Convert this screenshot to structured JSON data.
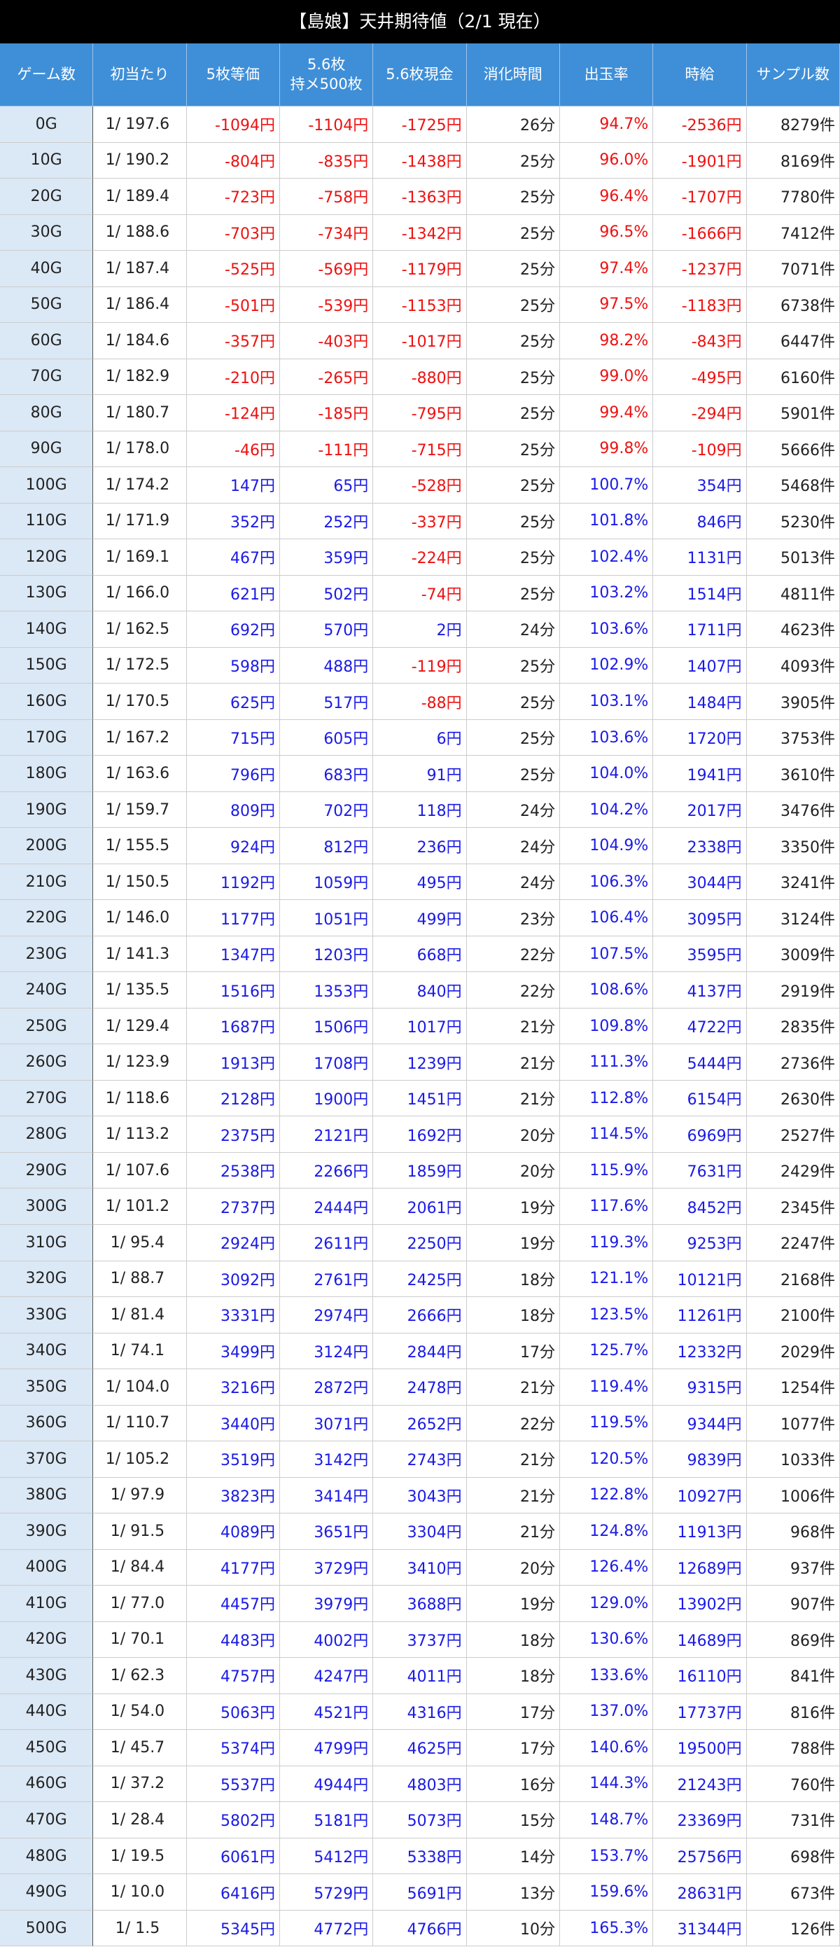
{
  "header": {
    "title": "【島娘】天井期待値（2/1 現在）"
  },
  "table": {
    "columns": [
      "ゲーム数",
      "初当たり",
      "5枚等価",
      "5.6枚\n持メ500枚",
      "5.6枚現金",
      "消化時間",
      "出玉率",
      "時給",
      "サンプル数"
    ],
    "rows": [
      [
        "0G",
        "1/ 197.6",
        "-1094円",
        "-1104円",
        "-1725円",
        "26分",
        "94.7%",
        "-2536円",
        "8279件"
      ],
      [
        "10G",
        "1/ 190.2",
        "-804円",
        "-835円",
        "-1438円",
        "25分",
        "96.0%",
        "-1901円",
        "8169件"
      ],
      [
        "20G",
        "1/ 189.4",
        "-723円",
        "-758円",
        "-1363円",
        "25分",
        "96.4%",
        "-1707円",
        "7780件"
      ],
      [
        "30G",
        "1/ 188.6",
        "-703円",
        "-734円",
        "-1342円",
        "25分",
        "96.5%",
        "-1666円",
        "7412件"
      ],
      [
        "40G",
        "1/ 187.4",
        "-525円",
        "-569円",
        "-1179円",
        "25分",
        "97.4%",
        "-1237円",
        "7071件"
      ],
      [
        "50G",
        "1/ 186.4",
        "-501円",
        "-539円",
        "-1153円",
        "25分",
        "97.5%",
        "-1183円",
        "6738件"
      ],
      [
        "60G",
        "1/ 184.6",
        "-357円",
        "-403円",
        "-1017円",
        "25分",
        "98.2%",
        "-843円",
        "6447件"
      ],
      [
        "70G",
        "1/ 182.9",
        "-210円",
        "-265円",
        "-880円",
        "25分",
        "99.0%",
        "-495円",
        "6160件"
      ],
      [
        "80G",
        "1/ 180.7",
        "-124円",
        "-185円",
        "-795円",
        "25分",
        "99.4%",
        "-294円",
        "5901件"
      ],
      [
        "90G",
        "1/ 178.0",
        "-46円",
        "-111円",
        "-715円",
        "25分",
        "99.8%",
        "-109円",
        "5666件"
      ],
      [
        "100G",
        "1/ 174.2",
        "147円",
        "65円",
        "-528円",
        "25分",
        "100.7%",
        "354円",
        "5468件"
      ],
      [
        "110G",
        "1/ 171.9",
        "352円",
        "252円",
        "-337円",
        "25分",
        "101.8%",
        "846円",
        "5230件"
      ],
      [
        "120G",
        "1/ 169.1",
        "467円",
        "359円",
        "-224円",
        "25分",
        "102.4%",
        "1131円",
        "5013件"
      ],
      [
        "130G",
        "1/ 166.0",
        "621円",
        "502円",
        "-74円",
        "25分",
        "103.2%",
        "1514円",
        "4811件"
      ],
      [
        "140G",
        "1/ 162.5",
        "692円",
        "570円",
        "2円",
        "24分",
        "103.6%",
        "1711円",
        "4623件"
      ],
      [
        "150G",
        "1/ 172.5",
        "598円",
        "488円",
        "-119円",
        "25分",
        "102.9%",
        "1407円",
        "4093件"
      ],
      [
        "160G",
        "1/ 170.5",
        "625円",
        "517円",
        "-88円",
        "25分",
        "103.1%",
        "1484円",
        "3905件"
      ],
      [
        "170G",
        "1/ 167.2",
        "715円",
        "605円",
        "6円",
        "25分",
        "103.6%",
        "1720円",
        "3753件"
      ],
      [
        "180G",
        "1/ 163.6",
        "796円",
        "683円",
        "91円",
        "25分",
        "104.0%",
        "1941円",
        "3610件"
      ],
      [
        "190G",
        "1/ 159.7",
        "809円",
        "702円",
        "118円",
        "24分",
        "104.2%",
        "2017円",
        "3476件"
      ],
      [
        "200G",
        "1/ 155.5",
        "924円",
        "812円",
        "236円",
        "24分",
        "104.9%",
        "2338円",
        "3350件"
      ],
      [
        "210G",
        "1/ 150.5",
        "1192円",
        "1059円",
        "495円",
        "24分",
        "106.3%",
        "3044円",
        "3241件"
      ],
      [
        "220G",
        "1/ 146.0",
        "1177円",
        "1051円",
        "499円",
        "23分",
        "106.4%",
        "3095円",
        "3124件"
      ],
      [
        "230G",
        "1/ 141.3",
        "1347円",
        "1203円",
        "668円",
        "22分",
        "107.5%",
        "3595円",
        "3009件"
      ],
      [
        "240G",
        "1/ 135.5",
        "1516円",
        "1353円",
        "840円",
        "22分",
        "108.6%",
        "4137円",
        "2919件"
      ],
      [
        "250G",
        "1/ 129.4",
        "1687円",
        "1506円",
        "1017円",
        "21分",
        "109.8%",
        "4722円",
        "2835件"
      ],
      [
        "260G",
        "1/ 123.9",
        "1913円",
        "1708円",
        "1239円",
        "21分",
        "111.3%",
        "5444円",
        "2736件"
      ],
      [
        "270G",
        "1/ 118.6",
        "2128円",
        "1900円",
        "1451円",
        "21分",
        "112.8%",
        "6154円",
        "2630件"
      ],
      [
        "280G",
        "1/ 113.2",
        "2375円",
        "2121円",
        "1692円",
        "20分",
        "114.5%",
        "6969円",
        "2527件"
      ],
      [
        "290G",
        "1/ 107.6",
        "2538円",
        "2266円",
        "1859円",
        "20分",
        "115.9%",
        "7631円",
        "2429件"
      ],
      [
        "300G",
        "1/ 101.2",
        "2737円",
        "2444円",
        "2061円",
        "19分",
        "117.6%",
        "8452円",
        "2345件"
      ],
      [
        "310G",
        "1/ 95.4",
        "2924円",
        "2611円",
        "2250円",
        "19分",
        "119.3%",
        "9253円",
        "2247件"
      ],
      [
        "320G",
        "1/ 88.7",
        "3092円",
        "2761円",
        "2425円",
        "18分",
        "121.1%",
        "10121円",
        "2168件"
      ],
      [
        "330G",
        "1/ 81.4",
        "3331円",
        "2974円",
        "2666円",
        "18分",
        "123.5%",
        "11261円",
        "2100件"
      ],
      [
        "340G",
        "1/ 74.1",
        "3499円",
        "3124円",
        "2844円",
        "17分",
        "125.7%",
        "12332円",
        "2029件"
      ],
      [
        "350G",
        "1/ 104.0",
        "3216円",
        "2872円",
        "2478円",
        "21分",
        "119.4%",
        "9315円",
        "1254件"
      ],
      [
        "360G",
        "1/ 110.7",
        "3440円",
        "3071円",
        "2652円",
        "22分",
        "119.5%",
        "9344円",
        "1077件"
      ],
      [
        "370G",
        "1/ 105.2",
        "3519円",
        "3142円",
        "2743円",
        "21分",
        "120.5%",
        "9839円",
        "1033件"
      ],
      [
        "380G",
        "1/ 97.9",
        "3823円",
        "3414円",
        "3043円",
        "21分",
        "122.8%",
        "10927円",
        "1006件"
      ],
      [
        "390G",
        "1/ 91.5",
        "4089円",
        "3651円",
        "3304円",
        "21分",
        "124.8%",
        "11913円",
        "968件"
      ],
      [
        "400G",
        "1/ 84.4",
        "4177円",
        "3729円",
        "3410円",
        "20分",
        "126.4%",
        "12689円",
        "937件"
      ],
      [
        "410G",
        "1/ 77.0",
        "4457円",
        "3979円",
        "3688円",
        "19分",
        "129.0%",
        "13902円",
        "907件"
      ],
      [
        "420G",
        "1/ 70.1",
        "4483円",
        "4002円",
        "3737円",
        "18分",
        "130.6%",
        "14689円",
        "869件"
      ],
      [
        "430G",
        "1/ 62.3",
        "4757円",
        "4247円",
        "4011円",
        "18分",
        "133.6%",
        "16110円",
        "841件"
      ],
      [
        "440G",
        "1/ 54.0",
        "5063円",
        "4521円",
        "4316円",
        "17分",
        "137.0%",
        "17737円",
        "816件"
      ],
      [
        "450G",
        "1/ 45.7",
        "5374円",
        "4799円",
        "4625円",
        "17分",
        "140.6%",
        "19500円",
        "788件"
      ],
      [
        "460G",
        "1/ 37.2",
        "5537円",
        "4944円",
        "4803円",
        "16分",
        "144.3%",
        "21243円",
        "760件"
      ],
      [
        "470G",
        "1/ 28.4",
        "5802円",
        "5181円",
        "5073円",
        "15分",
        "148.7%",
        "23369円",
        "731件"
      ],
      [
        "480G",
        "1/ 19.5",
        "6061円",
        "5412円",
        "5338円",
        "14分",
        "153.7%",
        "25756円",
        "698件"
      ],
      [
        "490G",
        "1/ 10.0",
        "6416円",
        "5729円",
        "5691円",
        "13分",
        "159.6%",
        "28631円",
        "673件"
      ],
      [
        "500G",
        "1/ 1.5",
        "5345円",
        "4772円",
        "4766円",
        "10分",
        "165.3%",
        "31344円",
        "126件"
      ]
    ]
  }
}
